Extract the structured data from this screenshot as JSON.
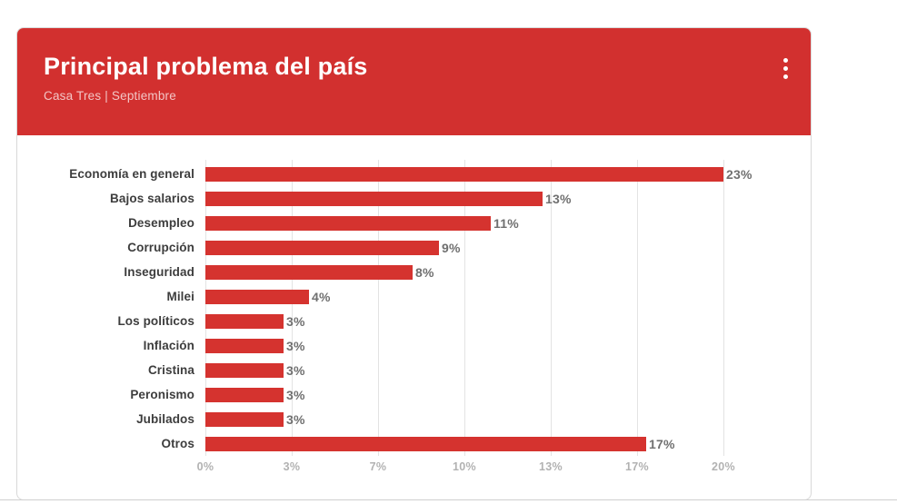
{
  "card": {
    "header": {
      "title": "Principal problema del país",
      "subtitle": "Casa Tres | Septiembre",
      "menu_icon": "kebab-menu-icon"
    }
  },
  "chart_data": {
    "type": "bar",
    "orientation": "horizontal",
    "title": "Principal problema del país",
    "subtitle": "Casa Tres | Septiembre",
    "categories": [
      "Economía en general",
      "Bajos salarios",
      "Desempleo",
      "Corrupción",
      "Inseguridad",
      "Milei",
      "Los políticos",
      "Inflación",
      "Cristina",
      "Peronismo",
      "Jubilados",
      "Otros"
    ],
    "values": [
      23,
      13,
      11,
      9,
      8,
      4,
      3,
      3,
      3,
      3,
      3,
      17
    ],
    "value_labels": [
      "23%",
      "13%",
      "11%",
      "9%",
      "8%",
      "4%",
      "3%",
      "3%",
      "3%",
      "3%",
      "3%",
      "17%"
    ],
    "xlabel": "",
    "ylabel": "",
    "axis": {
      "ticks": [
        "0%",
        "3%",
        "7%",
        "10%",
        "13%",
        "17%",
        "20%"
      ],
      "min": 0,
      "max": 20,
      "note": "ticks every 3.33%; bars longer than axis max are clipped at 20%"
    },
    "grid": true,
    "legend": "none",
    "bar_color": "#d5332f"
  },
  "colors": {
    "header_background": "#d2302f",
    "bar": "#d5332f",
    "title_text": "#ffffff",
    "subtitle_text": "rgba(255,255,255,0.72)",
    "category_label": "#3d3d3d",
    "value_label": "#707070",
    "axis_label": "#b2b2b2",
    "gridline": "#e3e3e3",
    "card_border": "#d9d9d9",
    "page_background": "#ffffff"
  }
}
